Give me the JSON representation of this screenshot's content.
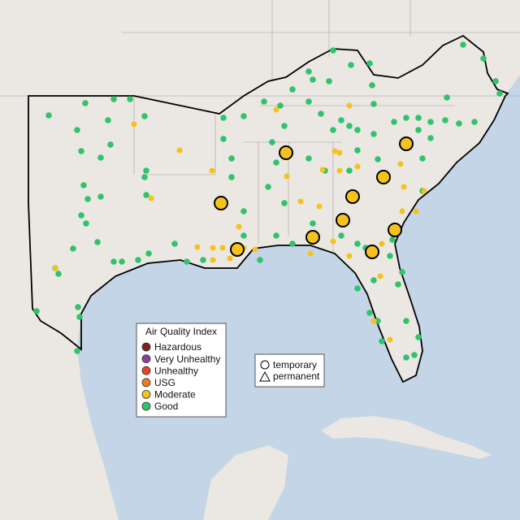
{
  "legend": {
    "title": "Air Quality Index",
    "items": [
      {
        "label": "Hazardous",
        "color": "#7e2318"
      },
      {
        "label": "Very Unhealthy",
        "color": "#8f3f97"
      },
      {
        "label": "Unhealthy",
        "color": "#e8412c"
      },
      {
        "label": "USG",
        "color": "#ef7d1a"
      },
      {
        "label": "Moderate",
        "color": "#f5c21d"
      },
      {
        "label": "Good",
        "color": "#2fc46b"
      }
    ]
  },
  "site_legend": {
    "items": [
      "temporary",
      "permanent"
    ]
  }
}
